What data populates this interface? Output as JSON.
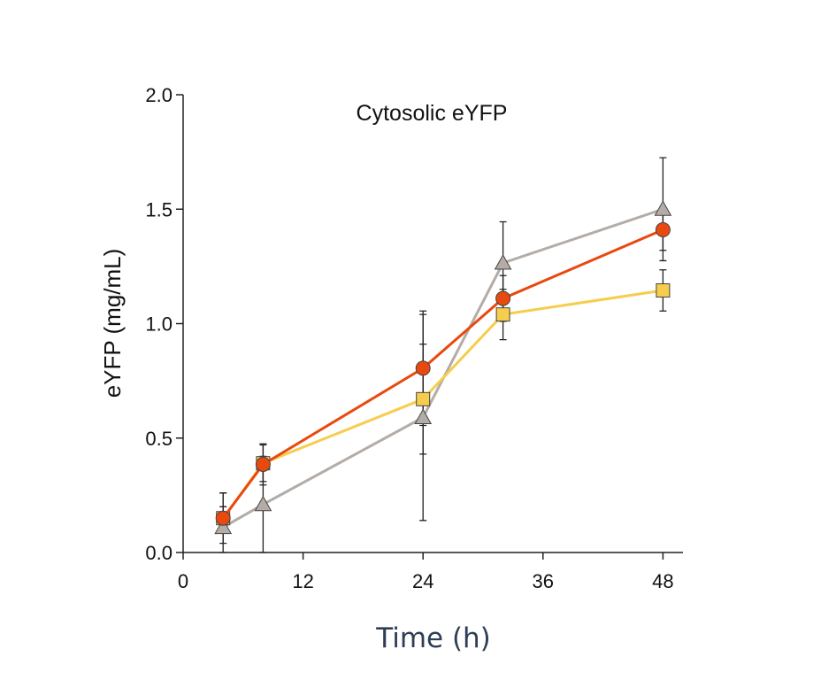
{
  "chart_data": {
    "type": "line",
    "title": "Cytosolic eYFP",
    "x_label": "Time (h)",
    "y_label": "eYFP (mg/mL)",
    "x": [
      4,
      8,
      24,
      32,
      48
    ],
    "series": [
      {
        "color": "#b3aca7",
        "marker": "triangle",
        "values": [
          0.11,
          0.21,
          0.59,
          1.265,
          1.5
        ],
        "errors": [
          0.15,
          0.21,
          0.45,
          0.18,
          0.225
        ]
      },
      {
        "color": "#f6cd4c",
        "marker": "square",
        "values": [
          0.15,
          0.39,
          0.67,
          1.04,
          1.145
        ],
        "errors": [
          0.05,
          0.08,
          0.24,
          0.11,
          0.09
        ]
      },
      {
        "color": "#e8490f",
        "marker": "circle",
        "values": [
          0.15,
          0.385,
          0.805,
          1.11,
          1.41
        ],
        "errors": [
          0.11,
          0.09,
          0.25,
          0.1,
          0.09
        ]
      }
    ],
    "xlim": [
      0,
      50
    ],
    "xticks": [
      0,
      12,
      24,
      36,
      48
    ],
    "ylim": [
      0,
      2
    ],
    "yticks": [
      {
        "value": 0,
        "label": "0.0"
      },
      0.5,
      {
        "value": 1,
        "label": "1.0"
      },
      1.5,
      {
        "value": 2,
        "label": "2.0"
      }
    ],
    "grid": false
  }
}
